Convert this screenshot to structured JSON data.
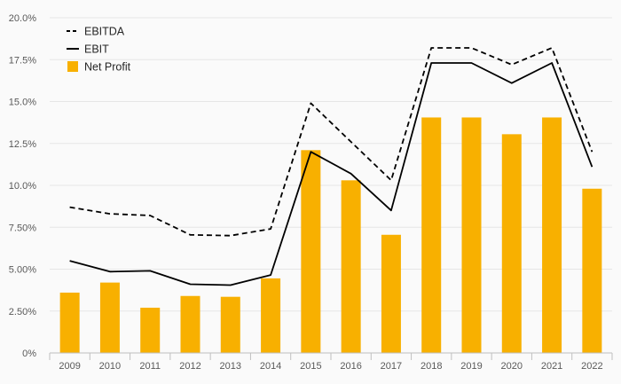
{
  "chart_data": {
    "type": "bar",
    "categories": [
      "2009",
      "2010",
      "2011",
      "2012",
      "2013",
      "2014",
      "2015",
      "2016",
      "2017",
      "2018",
      "2019",
      "2020",
      "2021",
      "2022"
    ],
    "series": [
      {
        "name": "Net Profit",
        "type": "bar",
        "color": "#f8b000",
        "values": [
          3.6,
          4.2,
          2.7,
          3.4,
          3.35,
          4.45,
          12.1,
          10.3,
          7.05,
          14.05,
          14.05,
          13.05,
          14.05,
          9.8
        ]
      },
      {
        "name": "EBITDA",
        "type": "line",
        "dash": "dashed",
        "color": "#000000",
        "values": [
          8.7,
          8.3,
          8.2,
          7.05,
          7.0,
          7.4,
          14.9,
          12.6,
          10.3,
          18.2,
          18.2,
          17.2,
          18.2,
          12.0
        ]
      },
      {
        "name": "EBIT",
        "type": "line",
        "dash": "solid",
        "color": "#000000",
        "values": [
          5.5,
          4.85,
          4.9,
          4.1,
          4.05,
          4.65,
          12.0,
          10.7,
          8.5,
          17.3,
          17.3,
          16.1,
          17.3,
          11.1
        ]
      }
    ],
    "y_ticks": [
      "0%",
      "2.50%",
      "5.00%",
      "7.50%",
      "10.0%",
      "12.5%",
      "15.0%",
      "17.5%",
      "20.0%"
    ],
    "ylim": [
      0,
      20
    ],
    "grid": true,
    "legend_placement": "top-left"
  }
}
